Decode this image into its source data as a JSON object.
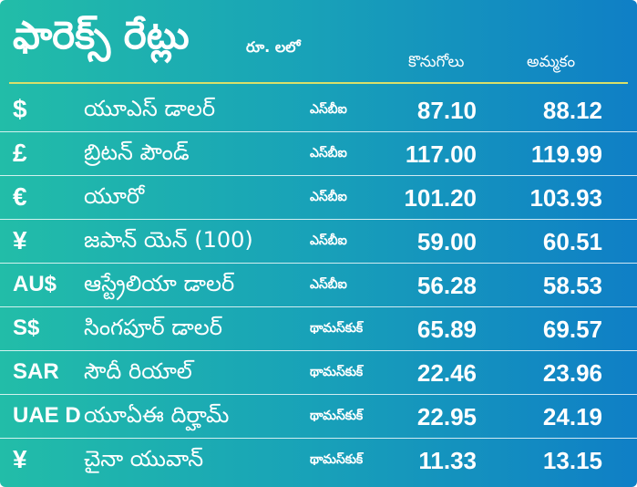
{
  "header": {
    "title": "ఫారెక్స్ రేట్లు",
    "unit": "రూ. లలో",
    "buy_label": "కొనుగోలు",
    "sell_label": "అమ్మకం"
  },
  "rows": [
    {
      "symbol": "$",
      "name": "యూఎస్ డాలర్",
      "bank": "ఎస్‌బీఐ",
      "buy": "87.10",
      "sell": "88.12"
    },
    {
      "symbol": "£",
      "name": "బ్రిటన్ పౌండ్",
      "bank": "ఎస్‌బీఐ",
      "buy": "117.00",
      "sell": "119.99"
    },
    {
      "symbol": "€",
      "name": "యూరో",
      "bank": "ఎస్‌బీఐ",
      "buy": "101.20",
      "sell": "103.93"
    },
    {
      "symbol": "¥",
      "name": "జపాన్ యెన్ (100)",
      "bank": "ఎస్‌బీఐ",
      "buy": "59.00",
      "sell": "60.51"
    },
    {
      "symbol": "AU$",
      "name": "ఆస్ట్రేలియా డాలర్",
      "bank": "ఎస్‌బీఐ",
      "buy": "56.28",
      "sell": "58.53"
    },
    {
      "symbol": "S$",
      "name": "సింగపూర్ డాలర్",
      "bank": "థామస్‌కుక్",
      "buy": "65.89",
      "sell": "69.57"
    },
    {
      "symbol": "SAR",
      "name": "సౌదీ రియాల్",
      "bank": "థామస్‌కుక్",
      "buy": "22.46",
      "sell": "23.96"
    },
    {
      "symbol": "UAE D",
      "name": "యూఏఈ దిర్హామ్",
      "bank": "థామస్‌కుక్",
      "buy": "22.95",
      "sell": "24.19"
    },
    {
      "symbol": "¥",
      "name": "చైనా యువాన్",
      "bank": "థామస్‌కుక్",
      "buy": "11.33",
      "sell": "13.15"
    }
  ],
  "colors": {
    "gradient_start": "#22bda8",
    "gradient_end": "#0f7fc6",
    "rule": "#d9df6a",
    "text": "#ffffff"
  }
}
